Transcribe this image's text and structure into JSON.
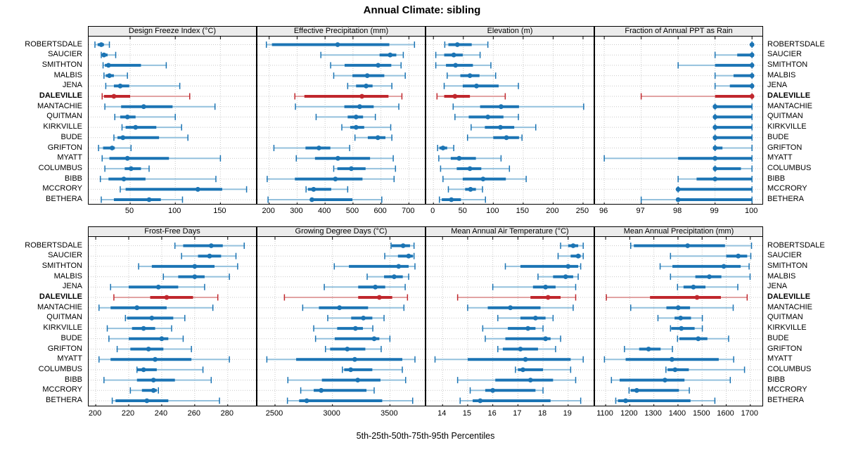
{
  "title": "Annual Climate: sibling",
  "xlabel": "5th-25th-50th-75th-95th Percentiles",
  "highlight_station": "DALEVILLE",
  "stations": [
    "ROBERTSDALE",
    "SAUCIER",
    "SMITHTON",
    "MALBIS",
    "JENA",
    "DALEVILLE",
    "MANTACHIE",
    "QUITMAN",
    "KIRKVILLE",
    "BUDE",
    "GRIFTON",
    "MYATT",
    "COLUMBUS",
    "BIBB",
    "MCCRORY",
    "BETHERA"
  ],
  "colors": {
    "series": "#1b74b4",
    "series_light": "#94c1dd",
    "highlight": "#c0272d",
    "highlight_light": "#e2a3a3",
    "grid": "#c9c9c9",
    "strip_bg": "#ececec",
    "border": "#000000",
    "background": "#ffffff"
  },
  "chart_data": [
    {
      "type": "scatter",
      "subtype": "percentile-interval",
      "title": "Design Freeze Index (°C)",
      "percentiles": [
        5,
        25,
        50,
        75,
        95
      ],
      "xlim": [
        4,
        191
      ],
      "xticks": [
        50,
        100,
        150
      ],
      "values": [
        [
          11,
          14,
          18,
          21,
          27
        ],
        [
          18,
          19,
          21,
          25,
          34
        ],
        [
          20,
          22,
          26,
          62,
          90
        ],
        [
          21,
          23,
          27,
          32,
          47
        ],
        [
          23,
          32,
          39,
          49,
          105
        ],
        [
          19,
          21,
          32,
          50,
          116
        ],
        [
          22,
          40,
          65,
          97,
          144
        ],
        [
          33,
          39,
          47,
          56,
          100
        ],
        [
          41,
          45,
          56,
          79,
          107
        ],
        [
          32,
          36,
          42,
          82,
          114
        ],
        [
          15,
          20,
          30,
          33,
          51
        ],
        [
          19,
          27,
          47,
          93,
          150
        ],
        [
          22,
          44,
          51,
          62,
          71
        ],
        [
          17,
          26,
          43,
          67,
          145
        ],
        [
          39,
          45,
          125,
          152,
          179
        ],
        [
          18,
          32,
          71,
          84,
          108
        ]
      ]
    },
    {
      "type": "scatter",
      "subtype": "percentile-interval",
      "title": "Effective Precipitation (mm)",
      "percentiles": [
        5,
        25,
        50,
        75,
        95
      ],
      "xlim": [
        158,
        762
      ],
      "xticks": [
        200,
        300,
        400,
        500,
        600,
        700
      ],
      "values": [
        [
          190,
          210,
          445,
          630,
          720
        ],
        [
          385,
          595,
          633,
          655,
          680
        ],
        [
          420,
          470,
          590,
          637,
          672
        ],
        [
          431,
          498,
          551,
          612,
          687
        ],
        [
          481,
          511,
          547,
          570,
          639
        ],
        [
          292,
          326,
          532,
          627,
          675
        ],
        [
          294,
          469,
          524,
          574,
          664
        ],
        [
          368,
          481,
          511,
          536,
          580
        ],
        [
          460,
          490,
          511,
          540,
          635
        ],
        [
          507,
          553,
          589,
          616,
          639
        ],
        [
          217,
          330,
          378,
          419,
          488
        ],
        [
          297,
          364,
          446,
          561,
          644
        ],
        [
          431,
          444,
          494,
          545,
          652
        ],
        [
          193,
          292,
          437,
          534,
          647
        ],
        [
          332,
          339,
          359,
          422,
          481
        ],
        [
          196,
          347,
          353,
          498,
          603
        ]
      ]
    },
    {
      "type": "scatter",
      "subtype": "percentile-interval",
      "title": "Elevation (m)",
      "percentiles": [
        5,
        25,
        50,
        75,
        95
      ],
      "xlim": [
        -12,
        270
      ],
      "xticks": [
        0,
        50,
        100,
        150,
        200,
        250
      ],
      "values": [
        [
          19,
          25,
          40,
          64,
          91
        ],
        [
          4,
          18,
          34,
          49,
          78
        ],
        [
          4,
          21,
          37,
          66,
          96
        ],
        [
          23,
          45,
          61,
          77,
          104
        ],
        [
          18,
          49,
          72,
          109,
          142
        ],
        [
          6,
          18,
          36,
          61,
          120
        ],
        [
          33,
          78,
          113,
          143,
          251
        ],
        [
          36,
          59,
          91,
          117,
          142
        ],
        [
          63,
          86,
          112,
          135,
          171
        ],
        [
          57,
          100,
          122,
          143,
          148
        ],
        [
          7,
          10,
          16,
          23,
          34
        ],
        [
          9,
          29,
          43,
          71,
          113
        ],
        [
          12,
          39,
          61,
          80,
          127
        ],
        [
          16,
          49,
          83,
          121,
          155
        ],
        [
          25,
          53,
          62,
          71,
          82
        ],
        [
          10,
          14,
          30,
          46,
          87
        ]
      ]
    },
    {
      "type": "scatter",
      "subtype": "percentile-interval",
      "title": "Fraction of Annual PPT as Rain",
      "percentiles": [
        5,
        25,
        50,
        75,
        95
      ],
      "xlim": [
        95.75,
        100.32
      ],
      "xticks": [
        96,
        97,
        98,
        99,
        100
      ],
      "values": [
        [
          100,
          100,
          100,
          100,
          100
        ],
        [
          99,
          99.6,
          100,
          100,
          100
        ],
        [
          98,
          99,
          100,
          100,
          100
        ],
        [
          99,
          99.5,
          100,
          100,
          100
        ],
        [
          99,
          99.4,
          100,
          100,
          100
        ],
        [
          97,
          99,
          100,
          100,
          100
        ],
        [
          99,
          99,
          99,
          100,
          100
        ],
        [
          99,
          99,
          99,
          100,
          100
        ],
        [
          99,
          99,
          99,
          100,
          100
        ],
        [
          99,
          99,
          99,
          100,
          100
        ],
        [
          99,
          99,
          99,
          99.2,
          100
        ],
        [
          96,
          98,
          99,
          100,
          100
        ],
        [
          99,
          99,
          99,
          99.7,
          100
        ],
        [
          98,
          98.5,
          99,
          100,
          100
        ],
        [
          98,
          98,
          98,
          100,
          100
        ],
        [
          97,
          98,
          98,
          100,
          100
        ]
      ]
    },
    {
      "type": "scatter",
      "subtype": "percentile-interval",
      "title": "Frost-Free Days",
      "percentiles": [
        5,
        25,
        50,
        75,
        95
      ],
      "xlim": [
        195.7,
        298
      ],
      "xticks": [
        200,
        220,
        240,
        260,
        280
      ],
      "values": [
        [
          248,
          253,
          270,
          277,
          290
        ],
        [
          252,
          262,
          269,
          276,
          285
        ],
        [
          226,
          234,
          260,
          272,
          286
        ],
        [
          241,
          250,
          260,
          266,
          281
        ],
        [
          209,
          220,
          238,
          250,
          266
        ],
        [
          211,
          233,
          243,
          259,
          274
        ],
        [
          202,
          209,
          225,
          243,
          271
        ],
        [
          218,
          219,
          234,
          247,
          254
        ],
        [
          207,
          222,
          229,
          236,
          246
        ],
        [
          208,
          220,
          240,
          244,
          253
        ],
        [
          213,
          221,
          232,
          241,
          258
        ],
        [
          202,
          209,
          236,
          258,
          281
        ],
        [
          225,
          225,
          229,
          237,
          265
        ],
        [
          205,
          225,
          235,
          248,
          270
        ],
        [
          221,
          228,
          235,
          237,
          238
        ],
        [
          210,
          212,
          231,
          244,
          275
        ]
      ]
    },
    {
      "type": "scatter",
      "subtype": "percentile-interval",
      "title": "Growing Degree Days (°C)",
      "percentiles": [
        5,
        25,
        50,
        75,
        95
      ],
      "xlim": [
        2347,
        3816
      ],
      "xticks": [
        2500,
        3000,
        3500
      ],
      "values": [
        [
          3510,
          3515,
          3615,
          3675,
          3710
        ],
        [
          3455,
          3570,
          3663,
          3700,
          3710
        ],
        [
          3016,
          3143,
          3576,
          3663,
          3718
        ],
        [
          3302,
          3449,
          3537,
          3612,
          3663
        ],
        [
          2929,
          3224,
          3373,
          3459,
          3633
        ],
        [
          2582,
          3224,
          3408,
          3520,
          3653
        ],
        [
          2741,
          2882,
          3061,
          3310,
          3622
        ],
        [
          2959,
          3163,
          3269,
          3347,
          3449
        ],
        [
          2837,
          3041,
          3200,
          3265,
          3351
        ],
        [
          2853,
          3020,
          3363,
          3408,
          3500
        ],
        [
          2939,
          2980,
          3129,
          3286,
          3424
        ],
        [
          2429,
          2684,
          3194,
          3608,
          3718
        ],
        [
          3086,
          3102,
          3159,
          3347,
          3608
        ],
        [
          2612,
          2908,
          3220,
          3418,
          3637
        ],
        [
          2724,
          2837,
          2902,
          3296,
          3363
        ],
        [
          2608,
          2710,
          2776,
          3433,
          3698
        ]
      ]
    },
    {
      "type": "scatter",
      "subtype": "percentile-interval",
      "title": "Mean Annual Air Temperature (°C)",
      "percentiles": [
        5,
        25,
        50,
        75,
        95
      ],
      "xlim": [
        13.35,
        20.07
      ],
      "xticks": [
        14,
        15,
        16,
        17,
        18,
        19
      ],
      "values": [
        [
          18.7,
          19.0,
          19.2,
          19.4,
          19.6
        ],
        [
          18.6,
          19.1,
          19.4,
          19.5,
          19.6
        ],
        [
          16.5,
          17.1,
          19.0,
          19.4,
          19.5
        ],
        [
          17.8,
          18.4,
          18.9,
          19.2,
          19.4
        ],
        [
          16.0,
          17.6,
          18.1,
          18.5,
          19.3
        ],
        [
          14.6,
          17.5,
          18.2,
          18.7,
          19.3
        ],
        [
          15.0,
          15.8,
          16.7,
          17.9,
          19.2
        ],
        [
          16.2,
          17.1,
          17.7,
          18.1,
          18.4
        ],
        [
          15.6,
          16.6,
          17.4,
          17.7,
          18.0
        ],
        [
          15.7,
          16.5,
          18.1,
          18.3,
          18.7
        ],
        [
          16.2,
          16.4,
          17.1,
          17.8,
          18.5
        ],
        [
          13.7,
          15.0,
          17.3,
          19.1,
          19.6
        ],
        [
          16.9,
          17.0,
          17.2,
          18.0,
          19.1
        ],
        [
          14.6,
          16.1,
          17.5,
          18.4,
          19.3
        ],
        [
          15.1,
          15.7,
          16.0,
          17.7,
          18.0
        ],
        [
          14.7,
          15.2,
          15.5,
          18.3,
          19.5
        ]
      ]
    },
    {
      "type": "scatter",
      "subtype": "percentile-interval",
      "title": "Mean Annual Precipitation (mm)",
      "percentiles": [
        5,
        25,
        50,
        75,
        95
      ],
      "xlim": [
        1056,
        1756
      ],
      "xticks": [
        1100,
        1200,
        1300,
        1400,
        1500,
        1600,
        1700
      ],
      "values": [
        [
          1204,
          1217,
          1440,
          1595,
          1705
        ],
        [
          1369,
          1600,
          1650,
          1687,
          1702
        ],
        [
          1326,
          1377,
          1590,
          1660,
          1695
        ],
        [
          1369,
          1472,
          1530,
          1580,
          1699
        ],
        [
          1398,
          1423,
          1464,
          1514,
          1648
        ],
        [
          1103,
          1284,
          1479,
          1578,
          1687
        ],
        [
          1204,
          1352,
          1401,
          1450,
          1629
        ],
        [
          1317,
          1386,
          1411,
          1454,
          1501
        ],
        [
          1369,
          1372,
          1414,
          1469,
          1501
        ],
        [
          1398,
          1406,
          1484,
          1522,
          1610
        ],
        [
          1178,
          1239,
          1278,
          1328,
          1377
        ],
        [
          1095,
          1183,
          1375,
          1569,
          1631
        ],
        [
          1350,
          1357,
          1388,
          1445,
          1676
        ],
        [
          1124,
          1158,
          1346,
          1427,
          1617
        ],
        [
          1197,
          1204,
          1229,
          1404,
          1447
        ],
        [
          1142,
          1151,
          1183,
          1452,
          1553
        ]
      ]
    }
  ]
}
